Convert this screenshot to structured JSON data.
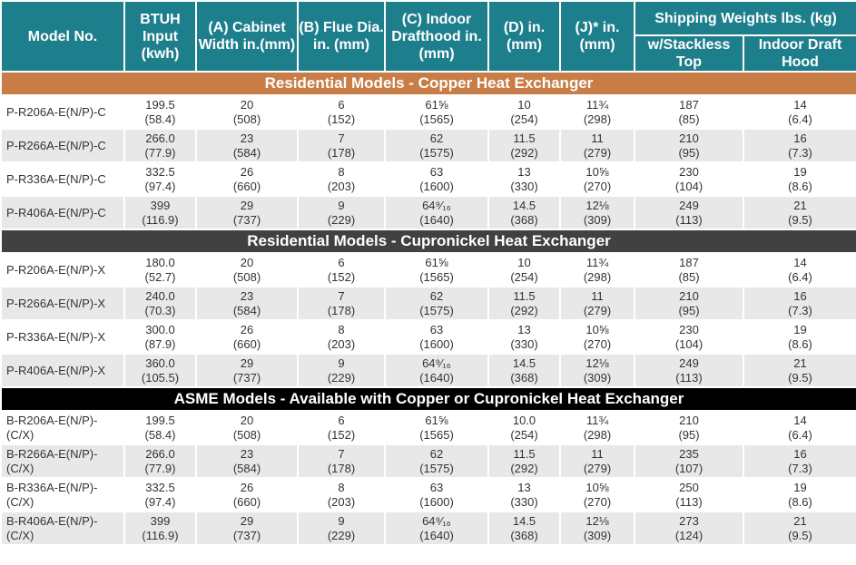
{
  "headers": {
    "model": "Model No.",
    "btuh": "BTUH Input (kwh)",
    "a": "(A) Cabinet Width in.(mm)",
    "b": "(B) Flue Dia. in. (mm)",
    "c": "(C) Indoor Drafthood in. (mm)",
    "d": "(D) in. (mm)",
    "j": "(J)* in. (mm)",
    "shipping": "Shipping Weights  lbs. (kg)",
    "stackless": "w/Stackless Top",
    "drafthood": "Indoor Draft Hood"
  },
  "sections": [
    {
      "title": "Residential Models - Copper Heat Exchanger",
      "style": "copper",
      "rows": [
        {
          "model": "P-R206A-E(N/P)-C",
          "cells": [
            [
              "199.5",
              "(58.4)"
            ],
            [
              "20",
              "(508)"
            ],
            [
              "6",
              "(152)"
            ],
            [
              "61⅝",
              "(1565)"
            ],
            [
              "10",
              "(254)"
            ],
            [
              "11¾",
              "(298)"
            ],
            [
              "187",
              "(85)"
            ],
            [
              "14",
              "(6.4)"
            ]
          ]
        },
        {
          "model": "P-R266A-E(N/P)-C",
          "cells": [
            [
              "266.0",
              "(77.9)"
            ],
            [
              "23",
              "(584)"
            ],
            [
              "7",
              "(178)"
            ],
            [
              "62",
              "(1575)"
            ],
            [
              "11.5",
              "(292)"
            ],
            [
              "11",
              "(279)"
            ],
            [
              "210",
              "(95)"
            ],
            [
              "16",
              "(7.3)"
            ]
          ]
        },
        {
          "model": "P-R336A-E(N/P)-C",
          "cells": [
            [
              "332.5",
              "(97.4)"
            ],
            [
              "26",
              "(660)"
            ],
            [
              "8",
              "(203)"
            ],
            [
              "63",
              "(1600)"
            ],
            [
              "13",
              "(330)"
            ],
            [
              "10⅝",
              "(270)"
            ],
            [
              "230",
              "(104)"
            ],
            [
              "19",
              "(8.6)"
            ]
          ]
        },
        {
          "model": "P-R406A-E(N/P)-C",
          "cells": [
            [
              "399",
              "(116.9)"
            ],
            [
              "29",
              "(737)"
            ],
            [
              "9",
              "(229)"
            ],
            [
              "64⁹⁄₁₆",
              "(1640)"
            ],
            [
              "14.5",
              "(368)"
            ],
            [
              "12⅛",
              "(309)"
            ],
            [
              "249",
              "(113)"
            ],
            [
              "21",
              "(9.5)"
            ]
          ]
        }
      ]
    },
    {
      "title": "Residential Models - Cupronickel Heat Exchanger",
      "style": "cupro",
      "rows": [
        {
          "model": "P-R206A-E(N/P)-X",
          "cells": [
            [
              "180.0",
              "(52.7)"
            ],
            [
              "20",
              "(508)"
            ],
            [
              "6",
              "(152)"
            ],
            [
              "61⅝",
              "(1565)"
            ],
            [
              "10",
              "(254)"
            ],
            [
              "11¾",
              "(298)"
            ],
            [
              "187",
              "(85)"
            ],
            [
              "14",
              "(6.4)"
            ]
          ]
        },
        {
          "model": "P-R266A-E(N/P)-X",
          "cells": [
            [
              "240.0",
              "(70.3)"
            ],
            [
              "23",
              "(584)"
            ],
            [
              "7",
              "(178)"
            ],
            [
              "62",
              "(1575)"
            ],
            [
              "11.5",
              "(292)"
            ],
            [
              "11",
              "(279)"
            ],
            [
              "210",
              "(95)"
            ],
            [
              "16",
              "(7.3)"
            ]
          ]
        },
        {
          "model": "P-R336A-E(N/P)-X",
          "cells": [
            [
              "300.0",
              "(87.9)"
            ],
            [
              "26",
              "(660)"
            ],
            [
              "8",
              "(203)"
            ],
            [
              "63",
              "(1600)"
            ],
            [
              "13",
              "(330)"
            ],
            [
              "10⅝",
              "(270)"
            ],
            [
              "230",
              "(104)"
            ],
            [
              "19",
              "(8.6)"
            ]
          ]
        },
        {
          "model": "P-R406A-E(N/P)-X",
          "cells": [
            [
              "360.0",
              "(105.5)"
            ],
            [
              "29",
              "(737)"
            ],
            [
              "9",
              "(229)"
            ],
            [
              "64⁹⁄₁₆",
              "(1640)"
            ],
            [
              "14.5",
              "(368)"
            ],
            [
              "12⅛",
              "(309)"
            ],
            [
              "249",
              "(113)"
            ],
            [
              "21",
              "(9.5)"
            ]
          ]
        }
      ]
    },
    {
      "title": "ASME Models - Available with Copper or Cupronickel Heat Exchanger",
      "style": "asme",
      "rows": [
        {
          "model": "B-R206A-E(N/P)-\n(C/X)",
          "cells": [
            [
              "199.5",
              "(58.4)"
            ],
            [
              "20",
              "(508)"
            ],
            [
              "6",
              "(152)"
            ],
            [
              "61⅝",
              "(1565)"
            ],
            [
              "10.0",
              "(254)"
            ],
            [
              "11¾",
              "(298)"
            ],
            [
              "210",
              "(95)"
            ],
            [
              "14",
              "(6.4)"
            ]
          ]
        },
        {
          "model": "B-R266A-E(N/P)-\n(C/X)",
          "cells": [
            [
              "266.0",
              "(77.9)"
            ],
            [
              "23",
              "(584)"
            ],
            [
              "7",
              "(178)"
            ],
            [
              "62",
              "(1575)"
            ],
            [
              "11.5",
              "(292)"
            ],
            [
              "11",
              "(279)"
            ],
            [
              "235",
              "(107)"
            ],
            [
              "16",
              "(7.3)"
            ]
          ]
        },
        {
          "model": "B-R336A-E(N/P)-\n(C/X)",
          "cells": [
            [
              "332.5",
              "(97.4)"
            ],
            [
              "26",
              "(660)"
            ],
            [
              "8",
              "(203)"
            ],
            [
              "63",
              "(1600)"
            ],
            [
              "13",
              "(330)"
            ],
            [
              "10⅝",
              "(270)"
            ],
            [
              "250",
              "(113)"
            ],
            [
              "19",
              "(8.6)"
            ]
          ]
        },
        {
          "model": "B-R406A-E(N/P)-\n(C/X)",
          "cells": [
            [
              "399",
              "(116.9)"
            ],
            [
              "29",
              "(737)"
            ],
            [
              "9",
              "(229)"
            ],
            [
              "64⁹⁄₁₆",
              "(1640)"
            ],
            [
              "14.5",
              "(368)"
            ],
            [
              "12⅛",
              "(309)"
            ],
            [
              "273",
              "(124)"
            ],
            [
              "21",
              "(9.5)"
            ]
          ]
        }
      ]
    }
  ],
  "colors": {
    "header": "#1e7f8c",
    "copper_band": "#c87d47",
    "cupro_band": "#414141",
    "asme_band": "#000000",
    "alt_row": "#e8e8e8"
  }
}
